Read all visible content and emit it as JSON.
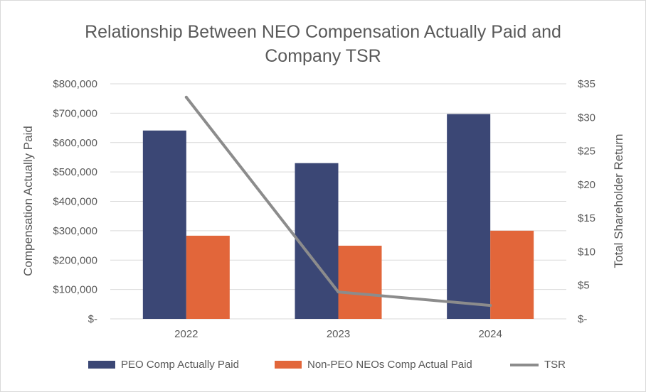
{
  "chart_data": {
    "type": "bar",
    "title_line1": "Relationship Between NEO Compensation Actually Paid and",
    "title_line2": "Company TSR",
    "categories": [
      "2022",
      "2023",
      "2024"
    ],
    "series": [
      {
        "name": "PEO Comp Actually Paid",
        "type": "bar",
        "axis": "left",
        "color": "#3b4775",
        "values": [
          641000,
          530000,
          697000
        ]
      },
      {
        "name": "Non-PEO NEOs Comp Actual Paid",
        "type": "bar",
        "axis": "left",
        "color": "#e2663a",
        "values": [
          283000,
          249000,
          300000
        ]
      },
      {
        "name": "TSR",
        "type": "line",
        "axis": "right",
        "color": "#8c8c8c",
        "values": [
          33,
          4,
          2
        ]
      }
    ],
    "ylabel": "Compensation Actually Paid",
    "ylabel_right": "Total Shareholder Return",
    "ylim": [
      0,
      800000
    ],
    "ylim_right": [
      0,
      35
    ],
    "yticks": [
      {
        "value": 0,
        "label": "$-"
      },
      {
        "value": 100000,
        "label": "$100,000"
      },
      {
        "value": 200000,
        "label": "$200,000"
      },
      {
        "value": 300000,
        "label": "$300,000"
      },
      {
        "value": 400000,
        "label": "$400,000"
      },
      {
        "value": 500000,
        "label": "$500,000"
      },
      {
        "value": 600000,
        "label": "$600,000"
      },
      {
        "value": 700000,
        "label": "$700,000"
      },
      {
        "value": 800000,
        "label": "$800,000"
      }
    ],
    "yticks_right": [
      {
        "value": 0,
        "label": "$-"
      },
      {
        "value": 5,
        "label": "$5"
      },
      {
        "value": 10,
        "label": "$10"
      },
      {
        "value": 15,
        "label": "$15"
      },
      {
        "value": 20,
        "label": "$20"
      },
      {
        "value": 25,
        "label": "$25"
      },
      {
        "value": 30,
        "label": "$30"
      },
      {
        "value": 35,
        "label": "$35"
      }
    ],
    "grid": true,
    "legend_position": "bottom"
  }
}
